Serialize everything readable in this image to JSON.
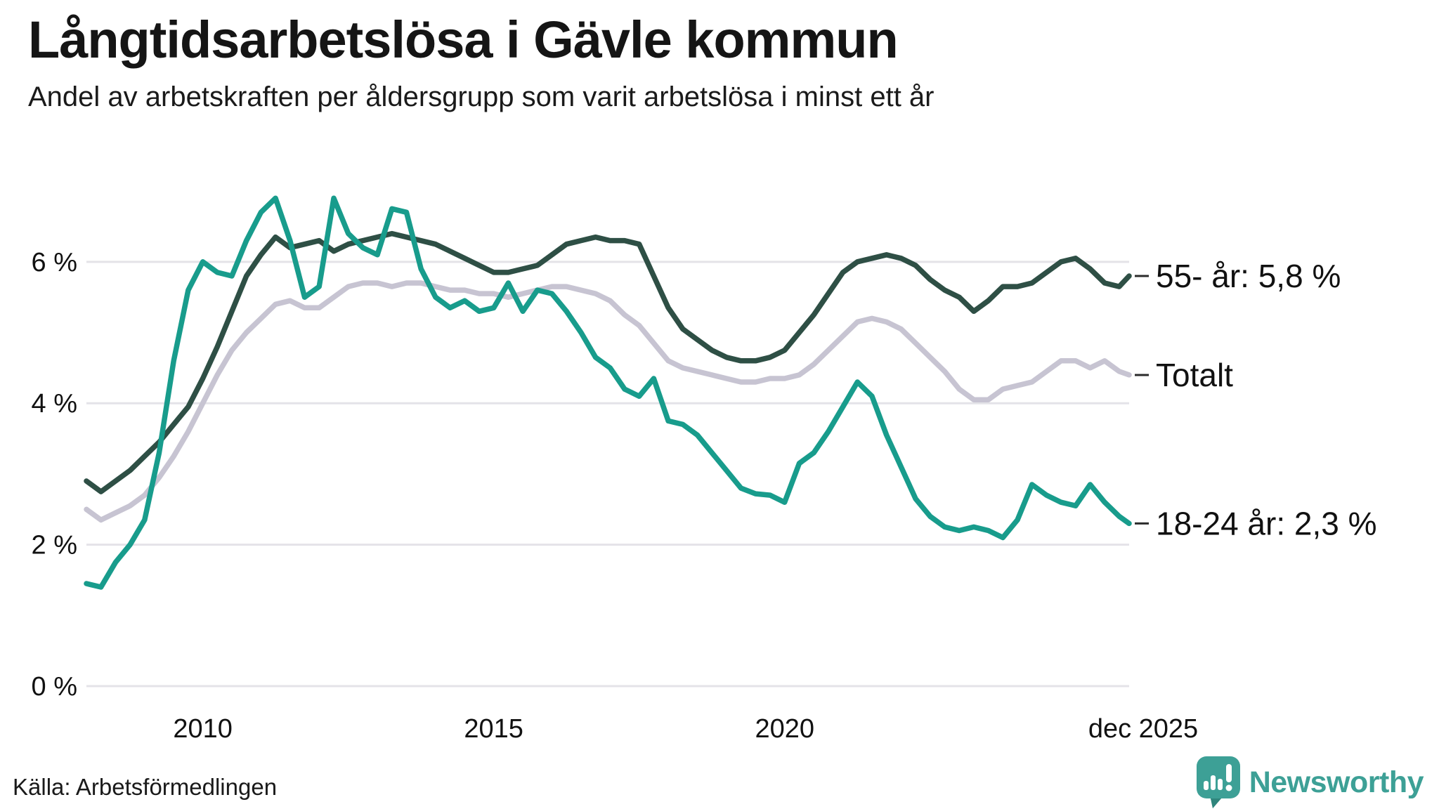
{
  "header": {
    "title": "Långtidsarbetslösa i Gävle kommun",
    "subtitle": "Andel av arbetskraften per åldersgrupp som varit arbetslösa i minst ett år"
  },
  "footer": {
    "source": "Källa: Arbetsförmedlingen",
    "logo_text": "Newsworthy"
  },
  "colors": {
    "grid": "#e4e3e8",
    "axis_text": "#111111",
    "label_dash": "#2b2b2b",
    "label_text": "#111111",
    "logo_teal": "#3da096"
  },
  "chart_data": {
    "type": "line",
    "title": "Långtidsarbetslösa i Gävle kommun",
    "subtitle": "Andel av arbetskraften per åldersgrupp som varit arbetslösa i minst ett år",
    "xlabel": "",
    "ylabel": "",
    "x_unit": "year (fractional = quarters, last point = dec 2025)",
    "xlim": [
      2008,
      2025.92
    ],
    "ylim": [
      0,
      7.2
    ],
    "grid": "horizontal",
    "legend_position": "right-end-labels",
    "y_ticks": [
      {
        "value": 6,
        "label": "6 %"
      },
      {
        "value": 4,
        "label": "4 %"
      },
      {
        "value": 2,
        "label": "2 %"
      },
      {
        "value": 0,
        "label": "0 %"
      }
    ],
    "x_ticks": [
      {
        "t": 2010,
        "label": "2010"
      },
      {
        "t": 2015,
        "label": "2015"
      },
      {
        "t": 2020,
        "label": "2020"
      },
      {
        "t": 2025.92,
        "label": "dec 2025"
      }
    ],
    "x": [
      2008,
      2008.25,
      2008.5,
      2008.75,
      2009,
      2009.25,
      2009.5,
      2009.75,
      2010,
      2010.25,
      2010.5,
      2010.75,
      2011,
      2011.25,
      2011.5,
      2011.75,
      2012,
      2012.25,
      2012.5,
      2012.75,
      2013,
      2013.25,
      2013.5,
      2013.75,
      2014,
      2014.25,
      2014.5,
      2014.75,
      2015,
      2015.25,
      2015.5,
      2015.75,
      2016,
      2016.25,
      2016.5,
      2016.75,
      2017,
      2017.25,
      2017.5,
      2017.75,
      2018,
      2018.25,
      2018.5,
      2018.75,
      2019,
      2019.25,
      2019.5,
      2019.75,
      2020,
      2020.25,
      2020.5,
      2020.75,
      2021,
      2021.25,
      2021.5,
      2021.75,
      2022,
      2022.25,
      2022.5,
      2022.75,
      2023,
      2023.25,
      2023.5,
      2023.75,
      2024,
      2024.25,
      2024.5,
      2024.75,
      2025,
      2025.25,
      2025.5,
      2025.75,
      2025.92
    ],
    "series": [
      {
        "name": "55- år",
        "end_label": "55- år: 5,8 %",
        "end_value": "5,8 %",
        "color": "#2e4f45",
        "values": [
          2.9,
          2.75,
          2.9,
          3.05,
          3.25,
          3.45,
          3.7,
          3.95,
          4.35,
          4.8,
          5.3,
          5.8,
          6.1,
          6.35,
          6.2,
          6.25,
          6.3,
          6.15,
          6.25,
          6.3,
          6.35,
          6.4,
          6.35,
          6.3,
          6.25,
          6.15,
          6.05,
          5.95,
          5.85,
          5.85,
          5.9,
          5.95,
          6.1,
          6.25,
          6.3,
          6.35,
          6.3,
          6.3,
          6.25,
          5.8,
          5.35,
          5.05,
          4.9,
          4.75,
          4.65,
          4.6,
          4.6,
          4.65,
          4.75,
          5.0,
          5.25,
          5.55,
          5.85,
          6.0,
          6.05,
          6.1,
          6.05,
          5.95,
          5.75,
          5.6,
          5.5,
          5.3,
          5.45,
          5.65,
          5.65,
          5.7,
          5.85,
          6.0,
          6.05,
          5.9,
          5.7,
          5.65,
          5.8
        ]
      },
      {
        "name": "Totalt",
        "end_label": "Totalt",
        "end_value": "4,4 %",
        "color": "#c7c4d2",
        "values": [
          2.5,
          2.35,
          2.45,
          2.55,
          2.7,
          2.95,
          3.25,
          3.6,
          4.0,
          4.4,
          4.75,
          5.0,
          5.2,
          5.4,
          5.45,
          5.35,
          5.35,
          5.5,
          5.65,
          5.7,
          5.7,
          5.65,
          5.7,
          5.7,
          5.65,
          5.6,
          5.6,
          5.55,
          5.55,
          5.5,
          5.55,
          5.6,
          5.65,
          5.65,
          5.6,
          5.55,
          5.45,
          5.25,
          5.1,
          4.85,
          4.6,
          4.5,
          4.45,
          4.4,
          4.35,
          4.3,
          4.3,
          4.35,
          4.35,
          4.4,
          4.55,
          4.75,
          4.95,
          5.15,
          5.2,
          5.15,
          5.05,
          4.85,
          4.65,
          4.45,
          4.2,
          4.05,
          4.05,
          4.2,
          4.25,
          4.3,
          4.45,
          4.6,
          4.6,
          4.5,
          4.6,
          4.45,
          4.4
        ]
      },
      {
        "name": "18-24 år",
        "end_label": "18-24 år: 2,3 %",
        "end_value": "2,3 %",
        "color": "#189c8c",
        "values": [
          1.45,
          1.4,
          1.75,
          2.0,
          2.35,
          3.3,
          4.6,
          5.6,
          6.0,
          5.85,
          5.8,
          6.3,
          6.7,
          6.9,
          6.3,
          5.5,
          5.65,
          6.9,
          6.4,
          6.2,
          6.1,
          6.75,
          6.7,
          5.9,
          5.5,
          5.35,
          5.45,
          5.3,
          5.35,
          5.7,
          5.3,
          5.6,
          5.55,
          5.3,
          5.0,
          4.65,
          4.5,
          4.2,
          4.1,
          4.35,
          3.75,
          3.7,
          3.55,
          3.3,
          3.05,
          2.8,
          2.72,
          2.7,
          2.6,
          3.15,
          3.3,
          3.6,
          3.95,
          4.3,
          4.1,
          3.55,
          3.1,
          2.65,
          2.4,
          2.25,
          2.2,
          2.25,
          2.2,
          2.1,
          2.35,
          2.85,
          2.7,
          2.6,
          2.55,
          2.85,
          2.6,
          2.4,
          2.3
        ]
      }
    ]
  }
}
